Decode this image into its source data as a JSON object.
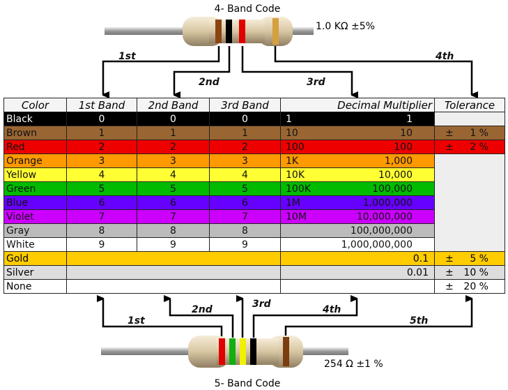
{
  "top": {
    "title": "4- Band Code",
    "value": "1.0 KΩ  ±5%",
    "labels": [
      "1st",
      "2nd",
      "3rd",
      "4th"
    ],
    "band_colors": [
      "#8b4513",
      "#000000",
      "#e00000",
      "#d4a040"
    ]
  },
  "bottom": {
    "title": "5- Band Code",
    "value": "254 Ω  ±1 %",
    "labels": [
      "1st",
      "2nd",
      "3rd",
      "4th",
      "5th"
    ],
    "band_colors": [
      "#e00000",
      "#10b010",
      "#f0f000",
      "#000000",
      "#7a3e10"
    ]
  },
  "table": {
    "headers": [
      "Color",
      "1st Band",
      "2nd Band",
      "3rd Band",
      "Decimal Multiplier",
      "Tolerance"
    ],
    "rows": [
      {
        "color": "Black",
        "bg": "#000000",
        "fg": "#ffffff",
        "d": "0",
        "short": "1",
        "mult": "1",
        "tol": ""
      },
      {
        "color": "Brown",
        "bg": "#996633",
        "fg": "#111111",
        "d": "1",
        "short": "10",
        "mult": "10",
        "tol": "1 %"
      },
      {
        "color": "Red",
        "bg": "#ee0000",
        "fg": "#111111",
        "d": "2",
        "short": "100",
        "mult": "100",
        "tol": "2 %"
      },
      {
        "color": "Orange",
        "bg": "#ff9900",
        "fg": "#111111",
        "d": "3",
        "short": "1K",
        "mult": "1,000"
      },
      {
        "color": "Yellow",
        "bg": "#ffff33",
        "fg": "#111111",
        "d": "4",
        "short": "10K",
        "mult": "10,000"
      },
      {
        "color": "Green",
        "bg": "#00bb00",
        "fg": "#111111",
        "d": "5",
        "short": "100K",
        "mult": "100,000"
      },
      {
        "color": "Blue",
        "bg": "#6600ff",
        "fg": "#111111",
        "d": "6",
        "short": "1M",
        "mult": "1,000,000"
      },
      {
        "color": "Violet",
        "bg": "#cc00ff",
        "fg": "#111111",
        "d": "7",
        "short": "10M",
        "mult": "10,000,000"
      },
      {
        "color": "Gray",
        "bg": "#bbbbbb",
        "fg": "#111111",
        "d": "8",
        "short": "",
        "mult": "100,000,000"
      },
      {
        "color": "White",
        "bg": "#ffffff",
        "fg": "#111111",
        "d": "9",
        "short": "",
        "mult": "1,000,000,000"
      }
    ],
    "extra": [
      {
        "color": "Gold",
        "bg": "#ffcc00",
        "mult": "0.1",
        "tol": "5 %"
      },
      {
        "color": "Silver",
        "bg": "#dddddd",
        "mult": "0.01",
        "tol": "10 %"
      },
      {
        "color": "None",
        "bg": "#ffffff",
        "mult": "",
        "tol": "20 %"
      }
    ],
    "pm": "±"
  }
}
